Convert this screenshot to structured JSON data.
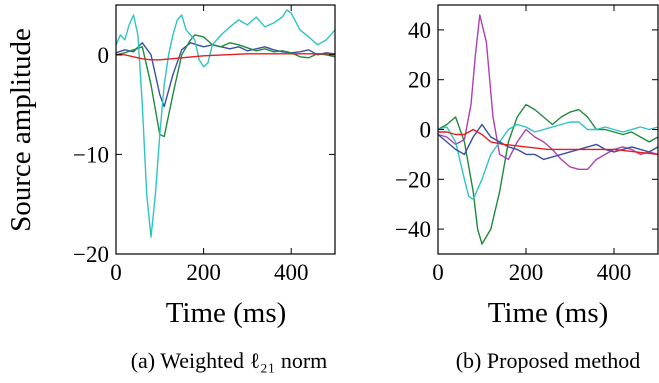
{
  "colors": {
    "series_1": "#3b4fa3",
    "series_2": "#1f8a3c",
    "series_3": "#2ec4c4",
    "series_4": "#e02020",
    "series_5": "#b040b0"
  },
  "chart_data": [
    {
      "type": "line",
      "caption": "(a) Weighted ℓ₂₁ norm",
      "xlabel": "Time (ms)",
      "ylabel": "Source amplitude",
      "xlim": [
        0,
        500
      ],
      "ylim": [
        -20,
        5
      ],
      "xticks": [
        0,
        200,
        400
      ],
      "yticks": [
        0,
        -10,
        -20
      ],
      "xtick_labels": [
        "0",
        "200",
        "400"
      ],
      "ytick_labels": [
        "0",
        "−10",
        "−20"
      ],
      "grid": false,
      "series": [
        {
          "color_key": "series_1",
          "x": [
            0,
            20,
            40,
            60,
            80,
            100,
            110,
            130,
            150,
            170,
            200,
            220,
            240,
            260,
            280,
            300,
            320,
            340,
            360,
            380,
            400,
            420,
            440,
            460,
            480,
            500
          ],
          "y": [
            0.2,
            0.5,
            0.3,
            1.2,
            0,
            -4,
            -5.2,
            -2,
            0.5,
            1.2,
            0.8,
            1.0,
            0.8,
            0.6,
            0.8,
            0.4,
            0.6,
            0.8,
            0.5,
            0.3,
            0.2,
            0.3,
            0.5,
            0.0,
            0.2,
            0.1
          ]
        },
        {
          "color_key": "series_2",
          "x": [
            0,
            20,
            40,
            60,
            80,
            100,
            110,
            130,
            150,
            170,
            180,
            200,
            220,
            240,
            260,
            280,
            300,
            320,
            340,
            360,
            380,
            400,
            420,
            440,
            460,
            480,
            500
          ],
          "y": [
            0,
            0.2,
            0.5,
            0.8,
            -3,
            -8,
            -8.2,
            -4,
            0,
            1.5,
            2.0,
            1.8,
            1.0,
            0.8,
            1.2,
            1.0,
            0.7,
            0.4,
            0.6,
            0.3,
            0.4,
            0.2,
            -0.2,
            -0.3,
            0.1,
            0.0,
            -0.2
          ]
        },
        {
          "color_key": "series_3",
          "x": [
            0,
            10,
            20,
            30,
            40,
            50,
            60,
            70,
            80,
            90,
            100,
            110,
            120,
            130,
            140,
            150,
            160,
            170,
            180,
            190,
            200,
            210,
            220,
            240,
            260,
            280,
            300,
            320,
            340,
            360,
            380,
            390,
            400,
            420,
            440,
            460,
            480,
            500
          ],
          "y": [
            1.0,
            2.0,
            1.5,
            3.0,
            4.0,
            2.0,
            -5,
            -14,
            -18.3,
            -14,
            -8,
            -3,
            0,
            2.0,
            3.5,
            4.0,
            2.5,
            2.0,
            1.5,
            -0.5,
            -1.2,
            -0.8,
            1.0,
            2.0,
            2.8,
            3.5,
            3.0,
            3.8,
            2.8,
            3.2,
            3.8,
            4.5,
            4.2,
            2.5,
            1.8,
            1.0,
            1.5,
            2.5
          ]
        },
        {
          "color_key": "series_4",
          "x": [
            0,
            20,
            40,
            60,
            80,
            100,
            150,
            200,
            250,
            300,
            350,
            400,
            450,
            500
          ],
          "y": [
            0,
            0,
            -0.2,
            -0.4,
            -0.5,
            -0.5,
            -0.3,
            -0.1,
            0.0,
            0.1,
            0.1,
            0.1,
            0.1,
            0.1
          ]
        }
      ]
    },
    {
      "type": "line",
      "caption": "(b) Proposed method",
      "xlabel": "Time (ms)",
      "ylabel": "",
      "xlim": [
        0,
        500
      ],
      "ylim": [
        -50,
        50
      ],
      "xticks": [
        0,
        200,
        400
      ],
      "yticks": [
        40,
        20,
        0,
        -20,
        -40
      ],
      "xtick_labels": [
        "0",
        "200",
        "400"
      ],
      "ytick_labels": [
        "40",
        "20",
        "0",
        "−20",
        "−40"
      ],
      "grid": false,
      "series": [
        {
          "color_key": "series_5",
          "x": [
            0,
            20,
            40,
            60,
            75,
            85,
            95,
            110,
            125,
            140,
            160,
            180,
            200,
            220,
            240,
            260,
            280,
            300,
            320,
            340,
            360,
            380,
            400,
            420,
            440,
            460,
            480,
            500
          ],
          "y": [
            -2,
            -3,
            -6,
            -4,
            10,
            30,
            46,
            35,
            5,
            -10,
            -12,
            -5,
            0,
            -3,
            -5,
            -8,
            -12,
            -15,
            -16,
            -16,
            -12,
            -10,
            -8,
            -7,
            -8,
            -10,
            -9,
            -10
          ]
        },
        {
          "color_key": "series_2",
          "x": [
            0,
            20,
            40,
            60,
            80,
            90,
            100,
            120,
            140,
            160,
            180,
            200,
            220,
            240,
            260,
            280,
            300,
            320,
            340,
            360,
            380,
            400,
            420,
            440,
            460,
            480,
            500
          ],
          "y": [
            0,
            2,
            5,
            -5,
            -25,
            -40,
            -46,
            -40,
            -25,
            -5,
            5,
            10,
            8,
            5,
            2,
            5,
            7,
            8,
            5,
            0,
            0,
            -1,
            -2,
            -1,
            -3,
            -5,
            -3
          ]
        },
        {
          "color_key": "series_3",
          "x": [
            0,
            20,
            40,
            60,
            70,
            80,
            100,
            120,
            140,
            160,
            180,
            200,
            220,
            240,
            260,
            280,
            300,
            320,
            340,
            360,
            380,
            400,
            420,
            440,
            460,
            480,
            500
          ],
          "y": [
            0,
            1,
            -5,
            -20,
            -27,
            -28,
            -20,
            -10,
            -5,
            0,
            2,
            1,
            -1,
            0,
            1,
            2,
            3,
            3,
            0,
            0,
            1,
            0,
            -1,
            0,
            1,
            0,
            1
          ]
        },
        {
          "color_key": "series_1",
          "x": [
            0,
            20,
            40,
            60,
            80,
            100,
            120,
            140,
            160,
            180,
            200,
            220,
            240,
            260,
            280,
            300,
            320,
            340,
            360,
            380,
            400,
            420,
            440,
            460,
            480,
            500
          ],
          "y": [
            -2,
            -5,
            -8,
            -10,
            -3,
            2,
            -3,
            -5,
            -7,
            -8,
            -10,
            -10,
            -12,
            -11,
            -10,
            -9,
            -8,
            -7,
            -6,
            -8,
            -9,
            -8,
            -7,
            -8,
            -9,
            -7
          ]
        },
        {
          "color_key": "series_4",
          "x": [
            0,
            20,
            40,
            60,
            80,
            100,
            120,
            150,
            200,
            250,
            300,
            350,
            400,
            450,
            500
          ],
          "y": [
            -1,
            -1,
            -2,
            -2,
            0,
            -2,
            -5,
            -6,
            -7,
            -8,
            -8,
            -8,
            -8,
            -9,
            -10
          ]
        }
      ]
    }
  ]
}
